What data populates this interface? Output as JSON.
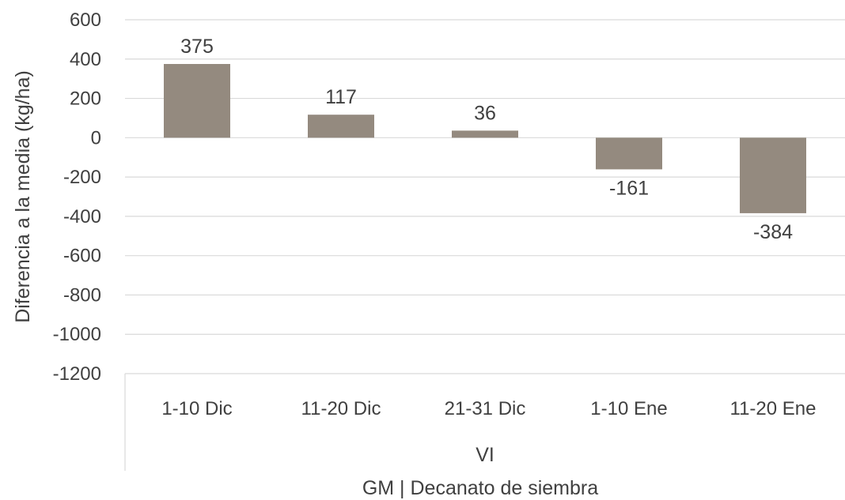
{
  "chart_data": {
    "type": "bar",
    "title": "",
    "ylabel": "Diferencia a la media (kg/ha)",
    "xlabel": "GM | Decanato de siembra",
    "group_label": "VI",
    "categories": [
      "1-10 Dic",
      "11-20 Dic",
      "21-31 Dic",
      "1-10 Ene",
      "11-20 Ene"
    ],
    "series": [
      {
        "values": [
          375,
          117,
          36,
          -161,
          -384
        ],
        "color": "#948a7f"
      }
    ],
    "data_labels": [
      "375",
      "117",
      "36",
      "-161",
      "-384"
    ],
    "ylim": [
      -1200,
      600
    ],
    "yticks": [
      600,
      400,
      200,
      0,
      -200,
      -400,
      -600,
      -800,
      -1000,
      -1200
    ],
    "grid": true,
    "legend": "none"
  }
}
